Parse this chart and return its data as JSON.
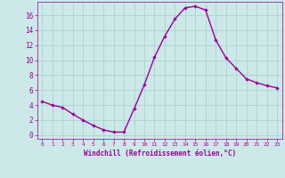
{
  "x": [
    0,
    1,
    2,
    3,
    4,
    5,
    6,
    7,
    8,
    9,
    10,
    11,
    12,
    13,
    14,
    15,
    16,
    17,
    18,
    19,
    20,
    21,
    22,
    23
  ],
  "y": [
    4.5,
    4.0,
    3.7,
    2.8,
    2.0,
    1.3,
    0.7,
    0.4,
    0.4,
    3.5,
    6.7,
    10.4,
    13.2,
    15.5,
    17.0,
    17.2,
    16.7,
    12.7,
    10.3,
    8.9,
    7.5,
    7.0,
    6.6,
    6.3
  ],
  "line_color": "#990099",
  "marker": "D",
  "marker_size": 2.2,
  "bg_color": "#cce8e8",
  "grid_color": "#aacccc",
  "xlabel": "Windchill (Refroidissement éolien,°C)",
  "xlabel_color": "#990099",
  "tick_color": "#990099",
  "ylim": [
    -0.5,
    17.8
  ],
  "xlim": [
    -0.5,
    23.5
  ],
  "yticks": [
    0,
    2,
    4,
    6,
    8,
    10,
    12,
    14,
    16
  ],
  "xticks": [
    0,
    1,
    2,
    3,
    4,
    5,
    6,
    7,
    8,
    9,
    10,
    11,
    12,
    13,
    14,
    15,
    16,
    17,
    18,
    19,
    20,
    21,
    22,
    23
  ],
  "spine_color": "#990099",
  "line_width": 1.0
}
